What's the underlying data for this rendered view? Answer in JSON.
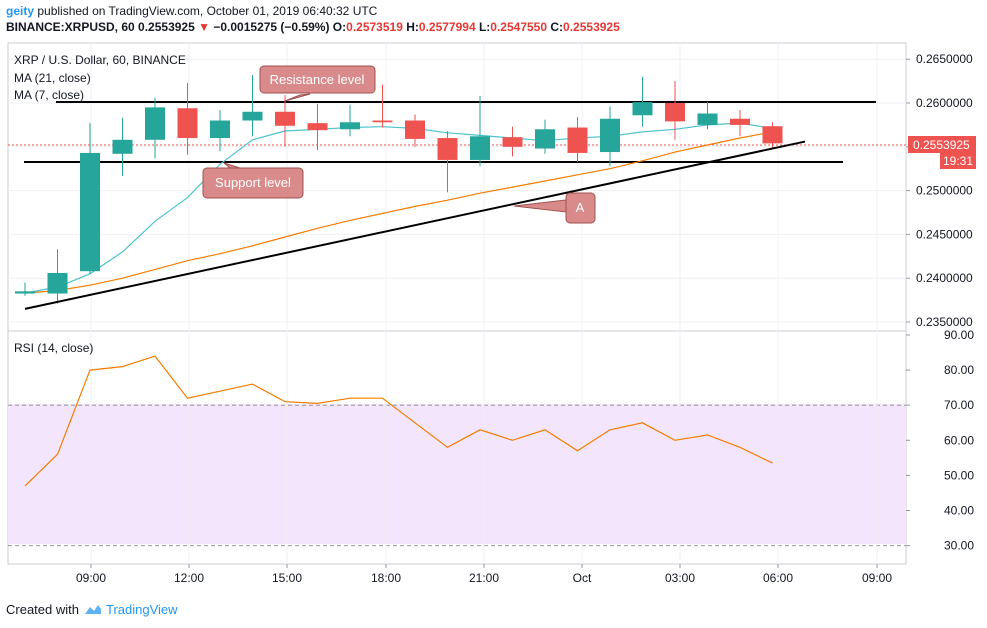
{
  "header": {
    "publisher": "geity",
    "published_text": "published on TradingView.com, October 01, 2019 06:40:32 UTC",
    "symbol": "BINANCE:XRPUSD, 60",
    "last": "0.2553925",
    "change_arrow": "▼",
    "change": "−0.0015275 (−0.59%)",
    "o_label": "O:",
    "o_val": "0.2573519",
    "h_label": "H:",
    "h_val": "0.2577994",
    "l_label": "L:",
    "l_val": "0.2547550",
    "c_label": "C:",
    "c_val": "0.2553925"
  },
  "legend": {
    "title": "XRP / U.S. Dollar, 60, BINANCE",
    "ma21": "MA (21, close)",
    "ma7": "MA (7, close)",
    "rsi": "RSI (14, close)"
  },
  "annotations": {
    "resistance": "Resistance level",
    "support": "Support level",
    "a_label": "A"
  },
  "price_badge": {
    "price": "0.2553925",
    "countdown": "19:31"
  },
  "footer": {
    "created_with": "Created with",
    "brand": "TradingView"
  },
  "colors": {
    "up": "#26a69a",
    "down": "#ef5350",
    "ma21": "#f57c00",
    "ma7": "#4dc3ce",
    "rsi": "#f57c00",
    "rsi_band": "#f3e5fb",
    "badge": "#ef5350",
    "annot": "#d98b8b"
  },
  "chart_data": [
    {
      "type": "candlestick",
      "title": "XRP / U.S. Dollar, 60, BINANCE",
      "x_ticks": [
        "09:00",
        "12:00",
        "15:00",
        "18:00",
        "21:00",
        "Oct",
        "03:00",
        "06:00",
        "09:00"
      ],
      "y_ticks": [
        "0.2650000",
        "0.2600000",
        "0.2550000",
        "0.2500000",
        "0.2450000",
        "0.2400000",
        "0.2350000"
      ],
      "ylim": [
        0.2335,
        0.2665
      ],
      "candles": [
        {
          "o": 0.23825,
          "h": 0.2395,
          "l": 0.238,
          "c": 0.2385
        },
        {
          "o": 0.23825,
          "h": 0.2433,
          "l": 0.2371,
          "c": 0.2406
        },
        {
          "o": 0.2408,
          "h": 0.2577,
          "l": 0.2405,
          "c": 0.2543
        },
        {
          "o": 0.2542,
          "h": 0.2583,
          "l": 0.2517,
          "c": 0.2558
        },
        {
          "o": 0.2558,
          "h": 0.2606,
          "l": 0.2537,
          "c": 0.2595
        },
        {
          "o": 0.2594,
          "h": 0.2623,
          "l": 0.2541,
          "c": 0.256
        },
        {
          "o": 0.256,
          "h": 0.2592,
          "l": 0.2545,
          "c": 0.258
        },
        {
          "o": 0.258,
          "h": 0.2632,
          "l": 0.2562,
          "c": 0.259
        },
        {
          "o": 0.259,
          "h": 0.2609,
          "l": 0.255,
          "c": 0.2574
        },
        {
          "o": 0.2577,
          "h": 0.2599,
          "l": 0.2546,
          "c": 0.2569
        },
        {
          "o": 0.257,
          "h": 0.2598,
          "l": 0.2562,
          "c": 0.2578
        },
        {
          "o": 0.258,
          "h": 0.2621,
          "l": 0.2572,
          "c": 0.2578
        },
        {
          "o": 0.258,
          "h": 0.2587,
          "l": 0.255,
          "c": 0.2559
        },
        {
          "o": 0.256,
          "h": 0.2568,
          "l": 0.2498,
          "c": 0.2535
        },
        {
          "o": 0.2535,
          "h": 0.2608,
          "l": 0.2528,
          "c": 0.2562
        },
        {
          "o": 0.2561,
          "h": 0.2573,
          "l": 0.2539,
          "c": 0.255
        },
        {
          "o": 0.2548,
          "h": 0.2581,
          "l": 0.2542,
          "c": 0.257
        },
        {
          "o": 0.2572,
          "h": 0.2584,
          "l": 0.2533,
          "c": 0.2543
        },
        {
          "o": 0.2544,
          "h": 0.2596,
          "l": 0.2528,
          "c": 0.2582
        },
        {
          "o": 0.2586,
          "h": 0.263,
          "l": 0.2573,
          "c": 0.2601
        },
        {
          "o": 0.26,
          "h": 0.2625,
          "l": 0.2558,
          "c": 0.2579
        },
        {
          "o": 0.2575,
          "h": 0.2601,
          "l": 0.257,
          "c": 0.2588
        },
        {
          "o": 0.2582,
          "h": 0.2592,
          "l": 0.2562,
          "c": 0.2575
        },
        {
          "o": 0.25735,
          "h": 0.2578,
          "l": 0.25475,
          "c": 0.25539
        }
      ],
      "ma7": [
        0.2383,
        0.239,
        0.2405,
        0.243,
        0.2465,
        0.2492,
        0.253,
        0.2558,
        0.2568,
        0.257,
        0.2572,
        0.2573,
        0.2571,
        0.2566,
        0.2563,
        0.256,
        0.2557,
        0.256,
        0.2562,
        0.2567,
        0.257,
        0.2575,
        0.2577,
        0.2571
      ],
      "ma21": [
        0.2383,
        0.2386,
        0.2392,
        0.24,
        0.241,
        0.242,
        0.2428,
        0.2437,
        0.2447,
        0.2457,
        0.2466,
        0.2474,
        0.2482,
        0.2489,
        0.2497,
        0.2504,
        0.2511,
        0.2518,
        0.2525,
        0.2534,
        0.2544,
        0.2552,
        0.256,
        0.2567
      ],
      "resistance_level": 0.2602,
      "support_level": 0.2532,
      "trendline_A": [
        {
          "i": 0,
          "p": 0.2365
        },
        {
          "i": 24,
          "p": 0.2556
        }
      ]
    },
    {
      "type": "line",
      "title": "RSI (14, close)",
      "y_ticks": [
        "90.00",
        "80.00",
        "70.00",
        "60.00",
        "50.00",
        "40.00",
        "30.00"
      ],
      "ylim": [
        25,
        90
      ],
      "band": [
        30,
        70
      ],
      "values": [
        47,
        56,
        80,
        81,
        84,
        72,
        74,
        76,
        71,
        70.5,
        72,
        72,
        65,
        58,
        63,
        60,
        63,
        57,
        63,
        65,
        60,
        61.5,
        58,
        53.5
      ]
    }
  ]
}
